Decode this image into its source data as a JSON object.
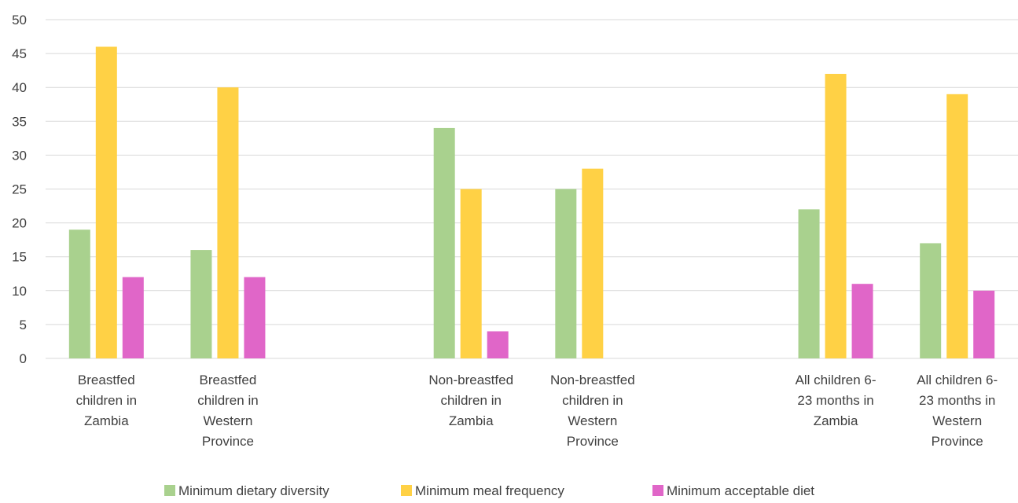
{
  "chart_data": {
    "type": "bar",
    "categories": [
      [
        "Breastfed",
        "children in",
        "Zambia"
      ],
      [
        "Breastfed",
        "children in",
        "Western",
        "Province"
      ],
      [
        "",
        "",
        ""
      ],
      [
        "Non-breastfed",
        "children in",
        "Zambia"
      ],
      [
        "Non-breastfed",
        "children in",
        "Western",
        "Province"
      ],
      [
        "",
        "",
        ""
      ],
      [
        "All children 6-",
        "23 months in",
        "Zambia"
      ],
      [
        "All children 6-",
        "23 months in",
        "Western",
        "Province"
      ]
    ],
    "series": [
      {
        "name": "Minimum dietary diversity",
        "color": "#a9d18e",
        "values": [
          19,
          16,
          null,
          34,
          25,
          null,
          22,
          17
        ]
      },
      {
        "name": "Minimum meal frequency",
        "color": "#ffd145",
        "values": [
          46,
          40,
          null,
          25,
          28,
          null,
          42,
          39
        ]
      },
      {
        "name": "Minimum acceptable diet",
        "color": "#e066c8",
        "values": [
          12,
          12,
          null,
          4,
          null,
          null,
          11,
          10
        ]
      }
    ],
    "ylim": [
      0,
      50
    ],
    "yticks": [
      0,
      5,
      10,
      15,
      20,
      25,
      30,
      35,
      40,
      45,
      50
    ],
    "grid": true,
    "legend_position": "bottom",
    "title": "",
    "xlabel": "",
    "ylabel": ""
  }
}
